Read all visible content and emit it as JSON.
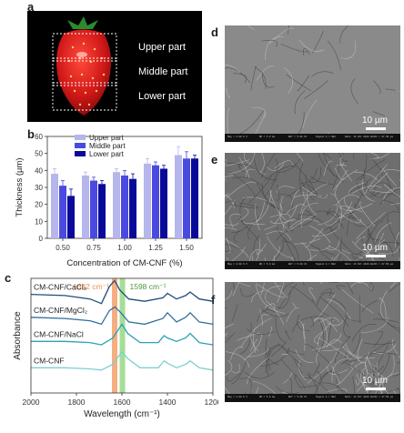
{
  "panels": {
    "a": "a",
    "b": "b",
    "c": "c",
    "d": "d",
    "e": "e",
    "f": "f"
  },
  "photo": {
    "labels": [
      "Upper part",
      "Middle part",
      "Lower part"
    ]
  },
  "sem": {
    "scale": "10 µm",
    "footer": {
      "d": [
        "Mag = 2.00 K X",
        "WD = 5.0 mm",
        "EHT = 5.00 kV",
        "Signal A = SE2",
        "Date: 13 Oct 2020",
        "Width = 87.59 µm"
      ],
      "e": [
        "Mag = 2.00 K X",
        "WD = 5.0 mm",
        "EHT = 5.00 kV",
        "Signal A = SE2",
        "Date: 13 Oct 2020",
        "Width = 87.59 µm"
      ],
      "f": [
        "Mag = 2.00 K X",
        "WD = 5.0 mm",
        "EHT = 5.00 kV",
        "Signal A = SE2",
        "Date: 13 Oct 2020",
        "Width = 87.59 µm"
      ]
    }
  },
  "chart_data": [
    {
      "type": "bar",
      "categories": [
        "0.50",
        "0.75",
        "1.00",
        "1.25",
        "1.50"
      ],
      "series": [
        {
          "name": "Upper part",
          "values": [
            38,
            37,
            39,
            44,
            49
          ],
          "errors": [
            3,
            2,
            2,
            3,
            5
          ],
          "color": "#b6b6ec"
        },
        {
          "name": "Middle part",
          "values": [
            31,
            34,
            37,
            43,
            47
          ],
          "errors": [
            3,
            2,
            3,
            2,
            4
          ],
          "color": "#4a4ae0"
        },
        {
          "name": "Lower part",
          "values": [
            25,
            32,
            35,
            41,
            47
          ],
          "errors": [
            4,
            2,
            3,
            2,
            2
          ],
          "color": "#0a0a9a"
        }
      ],
      "xlabel": "Concentration of CM-CNF (%)",
      "ylabel": "Thickness (µm)",
      "ylim": [
        0,
        60
      ],
      "yticks": [
        "0",
        "10",
        "20",
        "30",
        "40",
        "50",
        "60"
      ]
    },
    {
      "type": "line",
      "xlabel": "Wavelength (cm⁻¹)",
      "ylabel": "Absorbance",
      "xlim": [
        2000,
        1200
      ],
      "xticks": [
        "2000",
        "1800",
        "1600",
        "1400",
        "1200"
      ],
      "bands": [
        {
          "center": 1632,
          "label": "1632 cm⁻¹",
          "color": "#f28c4a"
        },
        {
          "center": 1598,
          "label": "1598 cm⁻¹",
          "color": "#7fd06b"
        }
      ],
      "series": [
        {
          "name": "CM-CNF/CaCl₂",
          "color": "#1f4e79",
          "points": [
            [
              2000,
              0.86
            ],
            [
              1850,
              0.85
            ],
            [
              1740,
              0.82
            ],
            [
              1690,
              0.78
            ],
            [
              1655,
              0.93
            ],
            [
              1632,
              0.98
            ],
            [
              1610,
              0.9
            ],
            [
              1570,
              0.82
            ],
            [
              1500,
              0.8
            ],
            [
              1420,
              0.83
            ],
            [
              1400,
              0.87
            ],
            [
              1360,
              0.82
            ],
            [
              1320,
              0.85
            ],
            [
              1300,
              0.88
            ],
            [
              1260,
              0.82
            ],
            [
              1200,
              0.8
            ]
          ]
        },
        {
          "name": "CM-CNF/MgCl₂",
          "color": "#2f6f9f",
          "points": [
            [
              2000,
              0.66
            ],
            [
              1850,
              0.65
            ],
            [
              1740,
              0.63
            ],
            [
              1690,
              0.6
            ],
            [
              1655,
              0.72
            ],
            [
              1630,
              0.75
            ],
            [
              1605,
              0.7
            ],
            [
              1570,
              0.62
            ],
            [
              1500,
              0.6
            ],
            [
              1420,
              0.65
            ],
            [
              1400,
              0.7
            ],
            [
              1360,
              0.62
            ],
            [
              1320,
              0.66
            ],
            [
              1300,
              0.7
            ],
            [
              1260,
              0.62
            ],
            [
              1200,
              0.6
            ]
          ]
        },
        {
          "name": "CM-CNF/NaCl",
          "color": "#2aa1b3",
          "points": [
            [
              2000,
              0.45
            ],
            [
              1850,
              0.45
            ],
            [
              1740,
              0.44
            ],
            [
              1690,
              0.42
            ],
            [
              1640,
              0.48
            ],
            [
              1600,
              0.6
            ],
            [
              1575,
              0.52
            ],
            [
              1520,
              0.44
            ],
            [
              1440,
              0.44
            ],
            [
              1415,
              0.5
            ],
            [
              1400,
              0.48
            ],
            [
              1360,
              0.45
            ],
            [
              1320,
              0.48
            ],
            [
              1300,
              0.52
            ],
            [
              1260,
              0.44
            ],
            [
              1200,
              0.42
            ]
          ]
        },
        {
          "name": "CM-CNF",
          "color": "#7fd0d0",
          "points": [
            [
              2000,
              0.22
            ],
            [
              1850,
              0.22
            ],
            [
              1740,
              0.21
            ],
            [
              1690,
              0.2
            ],
            [
              1640,
              0.25
            ],
            [
              1600,
              0.36
            ],
            [
              1575,
              0.3
            ],
            [
              1520,
              0.22
            ],
            [
              1440,
              0.22
            ],
            [
              1415,
              0.28
            ],
            [
              1400,
              0.26
            ],
            [
              1360,
              0.22
            ],
            [
              1320,
              0.25
            ],
            [
              1300,
              0.28
            ],
            [
              1260,
              0.22
            ],
            [
              1200,
              0.2
            ]
          ]
        }
      ]
    }
  ]
}
